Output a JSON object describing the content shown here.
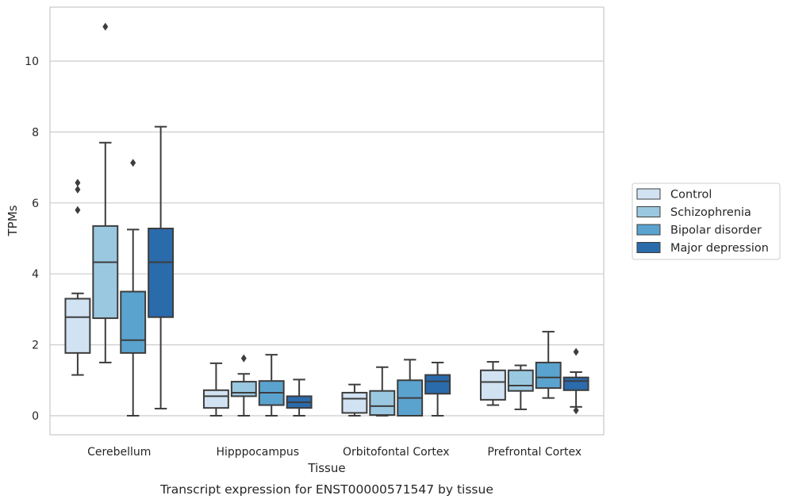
{
  "chart_data": {
    "type": "boxplot",
    "title": "",
    "caption": "Transcript expression for ENST00000571547 by tissue",
    "xlabel": "Tissue",
    "ylabel": "TPMs",
    "ylim": [
      -0.5,
      11.5
    ],
    "yticks": [
      0,
      2,
      4,
      6,
      8,
      10
    ],
    "grid": "horizontal",
    "legend_position": "right",
    "categories": [
      "Cerebellum",
      "Hipppocampus",
      "Orbitofontal Cortex",
      "Prefrontal Cortex"
    ],
    "series": [
      {
        "name": "Control",
        "color": "#d1e2f2",
        "boxes": [
          {
            "whislo": 1.15,
            "q1": 1.77,
            "med": 2.78,
            "q3": 3.3,
            "whishi": 3.45,
            "fliers": [
              5.8,
              6.38,
              6.57
            ]
          },
          {
            "whislo": 0.0,
            "q1": 0.22,
            "med": 0.55,
            "q3": 0.72,
            "whishi": 1.48,
            "fliers": []
          },
          {
            "whislo": 0.0,
            "q1": 0.08,
            "med": 0.48,
            "q3": 0.65,
            "whishi": 0.88,
            "fliers": []
          },
          {
            "whislo": 0.3,
            "q1": 0.45,
            "med": 0.95,
            "q3": 1.28,
            "whishi": 1.52,
            "fliers": []
          }
        ]
      },
      {
        "name": "Schizophrenia",
        "color": "#9ac8e0",
        "boxes": [
          {
            "whislo": 1.5,
            "q1": 2.75,
            "med": 4.33,
            "q3": 5.35,
            "whishi": 7.7,
            "fliers": [
              10.97
            ]
          },
          {
            "whislo": 0.0,
            "q1": 0.55,
            "med": 0.65,
            "q3": 0.96,
            "whishi": 1.18,
            "fliers": [
              1.62
            ]
          },
          {
            "whislo": 0.0,
            "q1": 0.02,
            "med": 0.27,
            "q3": 0.7,
            "whishi": 1.37,
            "fliers": []
          },
          {
            "whislo": 0.18,
            "q1": 0.7,
            "med": 0.85,
            "q3": 1.28,
            "whishi": 1.42,
            "fliers": []
          }
        ]
      },
      {
        "name": "Bipolar disorder",
        "color": "#5ba3cf",
        "boxes": [
          {
            "whislo": 0.0,
            "q1": 1.77,
            "med": 2.13,
            "q3": 3.5,
            "whishi": 5.25,
            "fliers": [
              7.13
            ]
          },
          {
            "whislo": 0.0,
            "q1": 0.3,
            "med": 0.65,
            "q3": 0.98,
            "whishi": 1.72,
            "fliers": []
          },
          {
            "whislo": 0.0,
            "q1": 0.0,
            "med": 0.5,
            "q3": 1.0,
            "whishi": 1.58,
            "fliers": []
          },
          {
            "whislo": 0.5,
            "q1": 0.78,
            "med": 1.08,
            "q3": 1.5,
            "whishi": 2.37,
            "fliers": []
          }
        ]
      },
      {
        "name": "Major depression",
        "color": "#2a6bac",
        "boxes": [
          {
            "whislo": 0.2,
            "q1": 2.78,
            "med": 4.33,
            "q3": 5.28,
            "whishi": 8.15,
            "fliers": []
          },
          {
            "whislo": 0.0,
            "q1": 0.22,
            "med": 0.38,
            "q3": 0.55,
            "whishi": 1.02,
            "fliers": []
          },
          {
            "whislo": 0.0,
            "q1": 0.62,
            "med": 0.97,
            "q3": 1.15,
            "whishi": 1.5,
            "fliers": []
          },
          {
            "whislo": 0.25,
            "q1": 0.72,
            "med": 0.98,
            "q3": 1.08,
            "whishi": 1.23,
            "fliers": [
              0.15,
              1.8
            ]
          }
        ]
      }
    ]
  }
}
